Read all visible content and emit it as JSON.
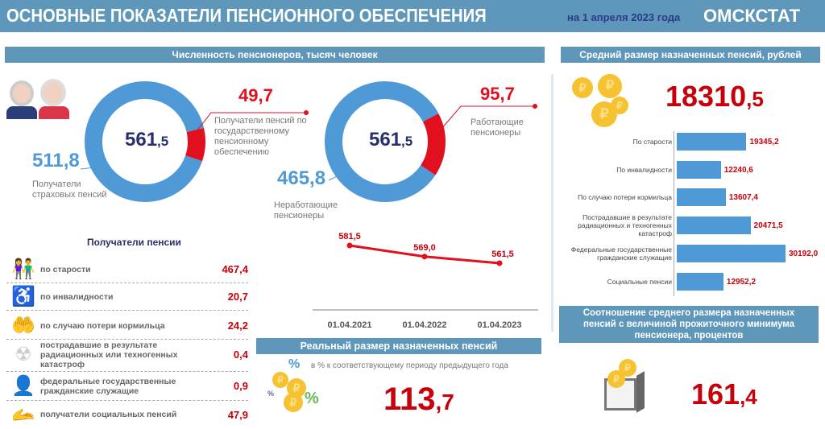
{
  "header": {
    "title": "ОСНОВНЫЕ ПОКАЗАТЕЛИ ПЕНСИОННОГО ОБЕСПЕЧЕНИЯ",
    "date": "на 1 апреля 2023 года",
    "org": "ОМСКСТАТ"
  },
  "pensioners": {
    "title": "Численность пенсионеров, тысяч человек",
    "donut1": {
      "total_int": "561",
      "total_dec": ",5",
      "blue_value": "511,8",
      "blue_label": "Получатели страховых пенсий",
      "red_value": "49,7",
      "red_label": "Получатели пенсий по государственному пенсионному обеспечению",
      "blue": 511.8,
      "red": 49.7
    },
    "donut2": {
      "total_int": "561",
      "total_dec": ",5",
      "blue_value": "465,8",
      "blue_label": "Неработающие пенсионеры",
      "red_value": "95,7",
      "red_label": "Работающие пенсионеры",
      "blue": 465.8,
      "red": 95.7
    },
    "colors": {
      "blue": "#4f9ad6",
      "red": "#e0101f"
    }
  },
  "trend": {
    "points": [
      {
        "x": "01.04.2021",
        "y": 581.5,
        "label": "581,5"
      },
      {
        "x": "01.04.2022",
        "y": 569.0,
        "label": "569,0"
      },
      {
        "x": "01.04.2023",
        "y": 561.5,
        "label": "561,5"
      }
    ]
  },
  "recipients": {
    "title": "Получатели пенсии",
    "rows": [
      {
        "icon": "elderly-couple-icon",
        "label": "по старости",
        "value": "467,4"
      },
      {
        "icon": "wheelchair-icon",
        "label": "по инвалидности",
        "value": "20,7"
      },
      {
        "icon": "protecting-hands-icon",
        "label": "по случаю потери кормильца",
        "value": "24,2"
      },
      {
        "icon": "radiation-icon",
        "label": "пострадавшие в результате радиационных или техногенных катастроф",
        "value": "0,4"
      },
      {
        "icon": "civil-servant-icon",
        "label": "федеральные государственные гражданские служащие",
        "value": "0,9"
      },
      {
        "icon": "hand-person-icon",
        "label": "получатели социальных пенсий",
        "value": "47,9"
      }
    ]
  },
  "real": {
    "title": "Реальный размер назначенных пенсий",
    "subtitle": "в % к соответствующему периоду предыдущего года",
    "value_int": "113",
    "value_dec": ",7"
  },
  "average": {
    "title": "Средний размер назначенных пенсий, рублей",
    "value_int": "18310",
    "value_dec": ",5",
    "chart_data": {
      "type": "bar",
      "orientation": "horizontal",
      "categories": [
        "По старости",
        "По инвалидности",
        "По случаю потери кормильца",
        "Пострадавшие в результате радиационных и техногенных катастроф",
        "Федеральные государственные гражданские служащие",
        "Социальные пенсии"
      ],
      "values": [
        19345.2,
        12240.6,
        13607.4,
        20471.5,
        30192.0,
        12952.2
      ],
      "labels": [
        "19345,2",
        "12240,6",
        "13607,4",
        "20471,5",
        "30192,0",
        "12952,2"
      ],
      "color": "#4f9ad6"
    }
  },
  "ratio": {
    "title": "Соотношение среднего размера назначенных пенсий с величиной прожиточного минимума пенсионера, процентов",
    "value_int": "161",
    "value_dec": ",4"
  }
}
